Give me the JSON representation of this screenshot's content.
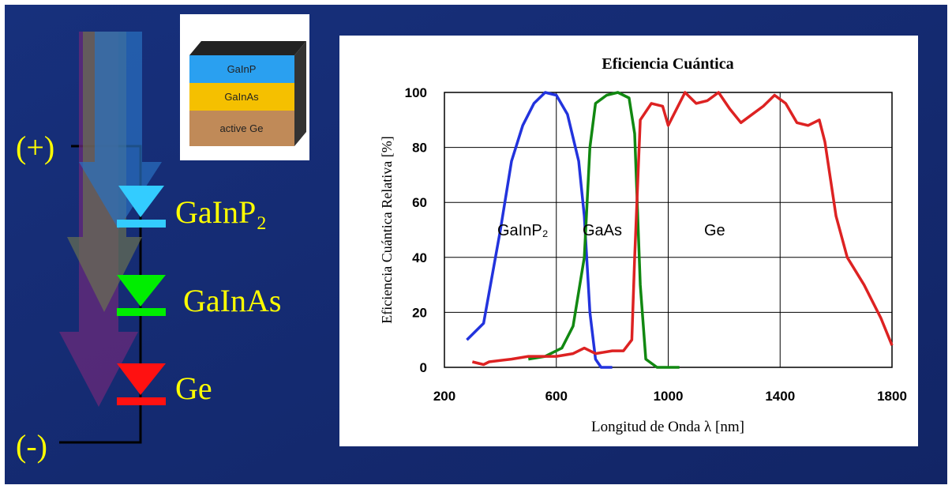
{
  "diagram": {
    "plus": "(+)",
    "minus": "(-)",
    "layers": [
      "GaInP₂",
      "GaInAs",
      "Ge"
    ]
  },
  "inset": {
    "layers": [
      "GaInP",
      "GaInAs",
      "active Ge"
    ]
  },
  "chart_data": {
    "type": "line",
    "title": "Eficiencia Cuántica",
    "xlabel": "Longitud de Onda  λ   [nm]",
    "ylabel": "Eficiencia Cuántica Relativa [%]",
    "xlim": [
      200,
      1800
    ],
    "ylim": [
      0,
      100
    ],
    "xticks": [
      200,
      600,
      1000,
      1400,
      1800
    ],
    "yticks": [
      0,
      20,
      40,
      60,
      80,
      100
    ],
    "grid": true,
    "series": [
      {
        "name": "GaInP₂",
        "color": "#2233dd",
        "x": [
          280,
          340,
          400,
          440,
          480,
          520,
          560,
          600,
          640,
          680,
          700,
          720,
          740,
          760,
          800
        ],
        "values": [
          10,
          16,
          50,
          75,
          88,
          96,
          100,
          99,
          92,
          75,
          55,
          20,
          3,
          0,
          0
        ]
      },
      {
        "name": "GaAs",
        "color": "#118811",
        "x": [
          500,
          560,
          620,
          660,
          700,
          720,
          740,
          780,
          820,
          860,
          880,
          900,
          920,
          960,
          1040
        ],
        "values": [
          3,
          4,
          7,
          15,
          40,
          80,
          96,
          99,
          100,
          98,
          85,
          30,
          3,
          0,
          0
        ]
      },
      {
        "name": "Ge",
        "color": "#dd2222",
        "x": [
          300,
          340,
          360,
          440,
          500,
          600,
          660,
          700,
          740,
          800,
          840,
          870,
          880,
          900,
          940,
          980,
          1000,
          1020,
          1060,
          1100,
          1140,
          1180,
          1220,
          1260,
          1300,
          1340,
          1380,
          1420,
          1460,
          1500,
          1540,
          1560,
          1600,
          1640,
          1700,
          1760,
          1800
        ],
        "values": [
          2,
          1,
          2,
          3,
          4,
          4,
          5,
          7,
          5,
          6,
          6,
          10,
          40,
          90,
          96,
          95,
          88,
          92,
          100,
          96,
          97,
          100,
          94,
          89,
          92,
          95,
          99,
          96,
          89,
          88,
          90,
          82,
          55,
          40,
          30,
          18,
          8
        ]
      }
    ]
  }
}
